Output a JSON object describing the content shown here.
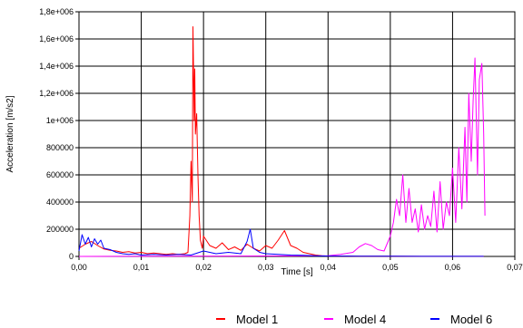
{
  "chart_data": {
    "type": "line",
    "xlabel": "Time [s]",
    "ylabel": "Acceleration [m/s2]",
    "xlim": [
      0,
      0.07
    ],
    "ylim": [
      0,
      1800000
    ],
    "x_ticks": [
      "0,00",
      "0,01",
      "0,02",
      "0,03",
      "0,04",
      "0,05",
      "0,06",
      "0,07"
    ],
    "y_ticks": [
      "0",
      "200000",
      "400000",
      "600000",
      "800000",
      "1e+006",
      "1,2e+006",
      "1,4e+006",
      "1,6e+006",
      "1,8e+006"
    ],
    "grid": true,
    "legend_position": "bottom",
    "series": [
      {
        "name": "Model 1",
        "color": "#ff0000",
        "points": [
          [
            0.0,
            60000
          ],
          [
            0.001,
            90000
          ],
          [
            0.002,
            110000
          ],
          [
            0.003,
            80000
          ],
          [
            0.004,
            55000
          ],
          [
            0.005,
            45000
          ],
          [
            0.006,
            40000
          ],
          [
            0.007,
            30000
          ],
          [
            0.008,
            35000
          ],
          [
            0.009,
            25000
          ],
          [
            0.01,
            30000
          ],
          [
            0.011,
            20000
          ],
          [
            0.012,
            25000
          ],
          [
            0.013,
            20000
          ],
          [
            0.014,
            15000
          ],
          [
            0.015,
            20000
          ],
          [
            0.016,
            15000
          ],
          [
            0.017,
            20000
          ],
          [
            0.0175,
            30000
          ],
          [
            0.0178,
            300000
          ],
          [
            0.018,
            700000
          ],
          [
            0.0182,
            400000
          ],
          [
            0.0183,
            1690000
          ],
          [
            0.0185,
            1000000
          ],
          [
            0.0186,
            1380000
          ],
          [
            0.0187,
            900000
          ],
          [
            0.0189,
            1050000
          ],
          [
            0.0191,
            600000
          ],
          [
            0.0193,
            300000
          ],
          [
            0.0195,
            120000
          ],
          [
            0.0198,
            60000
          ],
          [
            0.02,
            150000
          ],
          [
            0.021,
            80000
          ],
          [
            0.022,
            60000
          ],
          [
            0.023,
            100000
          ],
          [
            0.024,
            50000
          ],
          [
            0.025,
            70000
          ],
          [
            0.026,
            45000
          ],
          [
            0.027,
            90000
          ],
          [
            0.028,
            60000
          ],
          [
            0.029,
            40000
          ],
          [
            0.03,
            80000
          ],
          [
            0.031,
            60000
          ],
          [
            0.032,
            120000
          ],
          [
            0.033,
            190000
          ],
          [
            0.034,
            80000
          ],
          [
            0.035,
            60000
          ],
          [
            0.036,
            30000
          ],
          [
            0.037,
            20000
          ],
          [
            0.038,
            10000
          ],
          [
            0.039,
            5000
          ],
          [
            0.04,
            3000
          ],
          [
            0.045,
            2000
          ],
          [
            0.05,
            2000
          ],
          [
            0.055,
            1000
          ],
          [
            0.06,
            1000
          ],
          [
            0.065,
            1000
          ]
        ]
      },
      {
        "name": "Model 4",
        "color": "#ff00ff",
        "points": [
          [
            0.0,
            0
          ],
          [
            0.04,
            5000
          ],
          [
            0.042,
            15000
          ],
          [
            0.044,
            30000
          ],
          [
            0.045,
            70000
          ],
          [
            0.046,
            95000
          ],
          [
            0.047,
            80000
          ],
          [
            0.048,
            50000
          ],
          [
            0.049,
            40000
          ],
          [
            0.05,
            150000
          ],
          [
            0.0505,
            250000
          ],
          [
            0.051,
            420000
          ],
          [
            0.0515,
            300000
          ],
          [
            0.052,
            600000
          ],
          [
            0.0525,
            250000
          ],
          [
            0.053,
            500000
          ],
          [
            0.0535,
            250000
          ],
          [
            0.054,
            350000
          ],
          [
            0.0545,
            180000
          ],
          [
            0.055,
            380000
          ],
          [
            0.0555,
            200000
          ],
          [
            0.056,
            300000
          ],
          [
            0.0565,
            220000
          ],
          [
            0.057,
            480000
          ],
          [
            0.0575,
            180000
          ],
          [
            0.058,
            550000
          ],
          [
            0.0585,
            200000
          ],
          [
            0.059,
            400000
          ],
          [
            0.0595,
            300000
          ],
          [
            0.06,
            650000
          ],
          [
            0.0605,
            250000
          ],
          [
            0.061,
            800000
          ],
          [
            0.0615,
            350000
          ],
          [
            0.062,
            950000
          ],
          [
            0.0623,
            400000
          ],
          [
            0.0626,
            1200000
          ],
          [
            0.063,
            700000
          ],
          [
            0.0633,
            1150000
          ],
          [
            0.0636,
            1460000
          ],
          [
            0.064,
            600000
          ],
          [
            0.0643,
            1300000
          ],
          [
            0.0647,
            1420000
          ],
          [
            0.065,
            900000
          ],
          [
            0.0652,
            300000
          ]
        ]
      },
      {
        "name": "Model 6",
        "color": "#0000ff",
        "points": [
          [
            0.0,
            40000
          ],
          [
            0.0005,
            160000
          ],
          [
            0.001,
            90000
          ],
          [
            0.0015,
            140000
          ],
          [
            0.002,
            70000
          ],
          [
            0.0025,
            130000
          ],
          [
            0.003,
            90000
          ],
          [
            0.0035,
            120000
          ],
          [
            0.004,
            60000
          ],
          [
            0.005,
            50000
          ],
          [
            0.006,
            30000
          ],
          [
            0.007,
            20000
          ],
          [
            0.008,
            15000
          ],
          [
            0.009,
            20000
          ],
          [
            0.01,
            10000
          ],
          [
            0.012,
            15000
          ],
          [
            0.014,
            10000
          ],
          [
            0.016,
            15000
          ],
          [
            0.018,
            10000
          ],
          [
            0.02,
            40000
          ],
          [
            0.022,
            20000
          ],
          [
            0.024,
            30000
          ],
          [
            0.026,
            20000
          ],
          [
            0.027,
            110000
          ],
          [
            0.0275,
            200000
          ],
          [
            0.028,
            60000
          ],
          [
            0.029,
            30000
          ],
          [
            0.03,
            20000
          ],
          [
            0.032,
            15000
          ],
          [
            0.034,
            10000
          ],
          [
            0.036,
            8000
          ],
          [
            0.038,
            5000
          ],
          [
            0.04,
            3000
          ],
          [
            0.045,
            2000
          ],
          [
            0.05,
            2000
          ],
          [
            0.055,
            1000
          ],
          [
            0.06,
            1000
          ],
          [
            0.065,
            1000
          ]
        ]
      }
    ]
  }
}
